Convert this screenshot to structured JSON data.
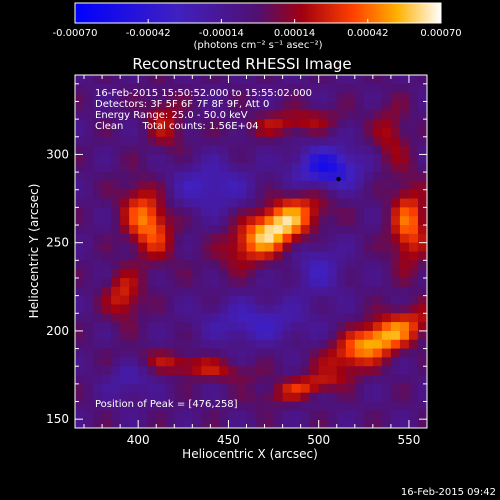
{
  "chart_data": {
    "type": "heatmap",
    "title": "Reconstructed RHESSI Image",
    "xlabel": "Heliocentric X (arcsec)",
    "ylabel": "Heliocentric Y (arcsec)",
    "xlim": [
      365,
      560
    ],
    "ylim": [
      145,
      345
    ],
    "xticks": [
      400,
      450,
      500,
      550
    ],
    "yticks": [
      150,
      200,
      250,
      300
    ],
    "colorbar": {
      "range": [
        -0.0007,
        0.0007
      ],
      "tick_labels": [
        "-0.00070",
        "-0.00042",
        "-0.00014",
        "0.00014",
        "0.00042",
        "0.00070"
      ],
      "label": "(photons cm⁻² s⁻¹ asec⁻²)"
    },
    "info_lines": [
      "16-Feb-2015 15:50:52.000 to 15:55:02.000",
      "Detectors: 3F 5F 6F 7F 8F 9F, Att 0",
      "Energy Range: 25.0 - 50.0 keV",
      "Clean      Total counts: 1.56E+04"
    ],
    "peak_text": "Position of Peak = [476,258]",
    "peak_position": [
      476,
      258
    ],
    "sources": [
      {
        "x": 476,
        "y": 258,
        "value": 0.0007
      },
      {
        "x": 533,
        "y": 195,
        "value": 0.00062
      },
      {
        "x": 405,
        "y": 262,
        "value": 0.0005
      },
      {
        "x": 550,
        "y": 260,
        "value": 0.00045
      }
    ],
    "timestamp": "16-Feb-2015 09:42"
  }
}
